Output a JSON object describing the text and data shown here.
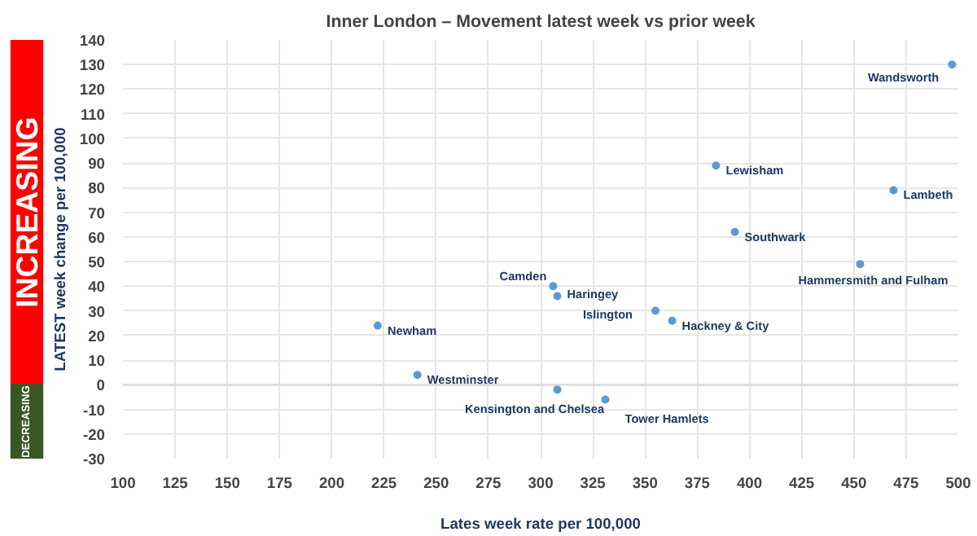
{
  "chart_data": {
    "type": "scatter",
    "title": "Inner London – Movement latest week vs prior week",
    "xlabel": "Lates week rate per 100,000",
    "ylabel": "LATEST week change per 100,000",
    "x": [
      497,
      384,
      469,
      393,
      222,
      241,
      306,
      308,
      355,
      363,
      453,
      308,
      331
    ],
    "series": [
      {
        "color": "#5b9bd5",
        "values": [
          130,
          89,
          79,
          62,
          24,
          4,
          40,
          36,
          30,
          26,
          49,
          -2,
          -6
        ]
      }
    ],
    "annotations": [
      {
        "text": "Wandsworth",
        "x": 497,
        "y": 130
      },
      {
        "text": "Lewisham",
        "x": 384,
        "y": 89
      },
      {
        "text": "Lambeth",
        "x": 469,
        "y": 79
      },
      {
        "text": "Southwark",
        "x": 393,
        "y": 62
      },
      {
        "text": "Newham",
        "x": 222,
        "y": 24
      },
      {
        "text": "Westminster",
        "x": 241,
        "y": 4
      },
      {
        "text": "Camden",
        "x": 306,
        "y": 40
      },
      {
        "text": "Haringey",
        "x": 308,
        "y": 36
      },
      {
        "text": "Islington",
        "x": 355,
        "y": 30
      },
      {
        "text": "Hackney & City",
        "x": 363,
        "y": 26
      },
      {
        "text": "Hammersmith and Fulham",
        "x": 453,
        "y": 49
      },
      {
        "text": "Kensington and Chelsea",
        "x": 308,
        "y": -2
      },
      {
        "text": "Tower Hamlets",
        "x": 331,
        "y": -6
      },
      "INCREASING",
      "DECREASING"
    ],
    "xlim": [
      100,
      500
    ],
    "xticks": [
      100,
      125,
      150,
      175,
      200,
      225,
      250,
      275,
      300,
      325,
      350,
      375,
      400,
      425,
      450,
      475,
      500
    ],
    "ylim": [
      -30,
      140
    ],
    "yticks": [
      -30,
      -20,
      -10,
      0,
      10,
      20,
      30,
      40,
      50,
      60,
      70,
      80,
      90,
      100,
      110,
      120,
      130,
      140
    ],
    "grid": true,
    "marker": "circle"
  }
}
